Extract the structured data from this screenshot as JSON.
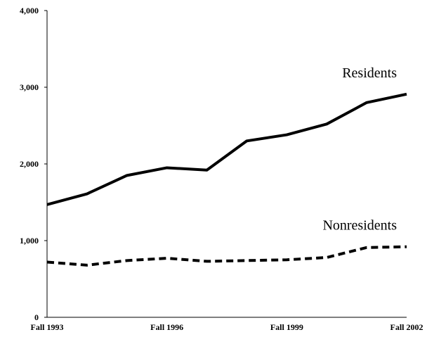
{
  "chart_data": {
    "type": "line",
    "categories": [
      "Fall 1993",
      null,
      null,
      "Fall 1996",
      null,
      null,
      "Fall 1999",
      null,
      null,
      "Fall 2002"
    ],
    "series": [
      {
        "name": "Residents",
        "color": "#000000",
        "line_style": "solid",
        "values": [
          1470,
          1610,
          1850,
          1950,
          1920,
          2300,
          2380,
          2520,
          2800,
          2910
        ]
      },
      {
        "name": "Nonresidents",
        "color": "#000000",
        "line_style": "dashed",
        "values": [
          720,
          680,
          740,
          770,
          730,
          740,
          750,
          780,
          910,
          920
        ]
      }
    ],
    "ylim": [
      0,
      4000
    ],
    "yticks": [
      0,
      {
        "value": 1000,
        "label": "1,000"
      },
      {
        "value": 2000,
        "label": "2,000"
      },
      {
        "value": 3000,
        "label": "3,000"
      },
      {
        "value": 4000,
        "label": "4,000"
      }
    ],
    "grid": false
  }
}
